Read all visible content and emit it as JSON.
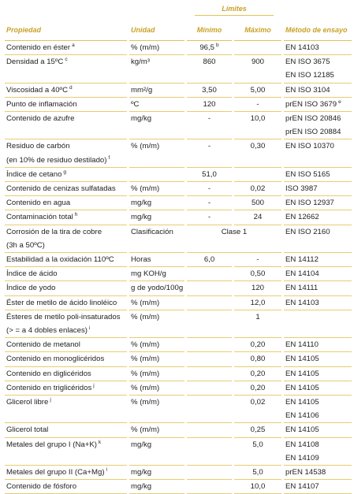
{
  "header": {
    "limits": "Límites",
    "columns": [
      "Propiedad",
      "Unidad",
      "Mínimo",
      "Máximo",
      "Método de ensayo"
    ]
  },
  "rows": [
    {
      "property": [
        "Contenido en éster"
      ],
      "property_note": "a",
      "unit": "% (m/m)",
      "min": "96,5",
      "min_note": "b",
      "method": [
        "EN 14103"
      ]
    },
    {
      "property": [
        "Densidad a 15ºC"
      ],
      "property_note": "c",
      "unit": "kg/m³",
      "min": "860",
      "max": "900",
      "method": [
        "EN ISO 3675",
        "EN ISO 12185"
      ]
    },
    {
      "property": [
        "Viscosidad a 40ºC"
      ],
      "property_note": "d",
      "unit": "mm²/g",
      "min": "3,50",
      "max": "5,00",
      "method": [
        "EN ISO 3104"
      ]
    },
    {
      "property": [
        "Punto de inflamación"
      ],
      "unit": "ºC",
      "min": "120",
      "max": "-",
      "method": [
        "prEN ISO 3679"
      ],
      "method_note": "e"
    },
    {
      "property": [
        "Contenido de azufre"
      ],
      "unit": "mg/kg",
      "min": "-",
      "max": "10,0",
      "method": [
        "prEN ISO 20846",
        "prEN ISO 20884"
      ]
    },
    {
      "property": [
        "Residuo de carbón",
        "(en 10% de residuo destilado)"
      ],
      "property_note": "f",
      "unit": "% (m/m)",
      "min": "-",
      "max": "0,30",
      "method": [
        "EN ISO 10370"
      ]
    },
    {
      "property": [
        "Índice de cetano"
      ],
      "property_note": "g",
      "min": "51,0",
      "method": [
        "EN ISO 5165"
      ]
    },
    {
      "property": [
        "Contenido de cenizas sulfatadas"
      ],
      "unit": "% (m/m)",
      "min": "-",
      "max": "0,02",
      "method": [
        "ISO 3987"
      ]
    },
    {
      "property": [
        "Contenido en agua"
      ],
      "unit": "mg/kg",
      "min": "-",
      "max": "500",
      "method": [
        "EN ISO 12937"
      ]
    },
    {
      "property": [
        "Contaminación total"
      ],
      "property_note": "h",
      "unit": "mg/kg",
      "min": "-",
      "max": "24",
      "method": [
        "EN 12662"
      ]
    },
    {
      "property": [
        "Corrosión de la tira de cobre",
        "(3h a 50ºC)"
      ],
      "unit": "Clasificación",
      "range": "Clase 1",
      "method": [
        "EN ISO 2160"
      ]
    },
    {
      "property": [
        "Estabilidad a la oxidación 110ºC"
      ],
      "unit": "Horas",
      "min": "6,0",
      "max": "-",
      "method": [
        "EN 14112"
      ]
    },
    {
      "property": [
        "Índice de ácido"
      ],
      "unit": "mg KOH/g",
      "max": "0,50",
      "method": [
        "EN 14104"
      ]
    },
    {
      "property": [
        "Índice de yodo"
      ],
      "unit": "g de yodo/100g",
      "max": "120",
      "method": [
        "EN 14111"
      ]
    },
    {
      "property": [
        "Éster de metilo de ácido linoléico"
      ],
      "unit": "% (m/m)",
      "max": "12,0",
      "method": [
        "EN 14103"
      ]
    },
    {
      "property": [
        "Ésteres de metilo poli-insaturados",
        "(> = a 4 dobles enlaces)"
      ],
      "property_note": "i",
      "unit": "% (m/m)",
      "max": "1"
    },
    {
      "property": [
        "Contenido de metanol"
      ],
      "unit": "% (m/m)",
      "max": "0,20",
      "method": [
        "EN 14110"
      ]
    },
    {
      "property": [
        "Contenido en monoglicéridos"
      ],
      "unit": "% (m/m)",
      "max": "0,80",
      "method": [
        "EN 14105"
      ]
    },
    {
      "property": [
        "Contenido en diglicéridos"
      ],
      "unit": "% (m/m)",
      "max": "0,20",
      "method": [
        "EN 14105"
      ]
    },
    {
      "property": [
        "Contenido en triglicéridos"
      ],
      "property_note": "j",
      "unit": "% (m/m)",
      "max": "0,20",
      "method": [
        "EN 14105"
      ]
    },
    {
      "property": [
        "Glicerol libre"
      ],
      "property_note": "j",
      "unit": "% (m/m)",
      "max": "0,02",
      "method": [
        "EN 14105",
        "EN 14106"
      ]
    },
    {
      "property": [
        "Glicerol total"
      ],
      "unit": "% (m/m)",
      "max": "0,25",
      "method": [
        "EN 14105"
      ]
    },
    {
      "property": [
        "Metales del grupo I (Na+K)"
      ],
      "property_note": "k",
      "unit": "mg/kg",
      "max": "5,0",
      "method": [
        "EN 14108",
        "EN 14109"
      ]
    },
    {
      "property": [
        "Metales del grupo II (Ca+Mg)"
      ],
      "property_note": "l",
      "unit": "mg/kg",
      "max": "5,0",
      "method": [
        "prEN 14538"
      ]
    },
    {
      "property": [
        "Contenido de fósforo"
      ],
      "unit": "mg/kg",
      "max": "10,0",
      "method": [
        "EN 14107"
      ]
    }
  ]
}
